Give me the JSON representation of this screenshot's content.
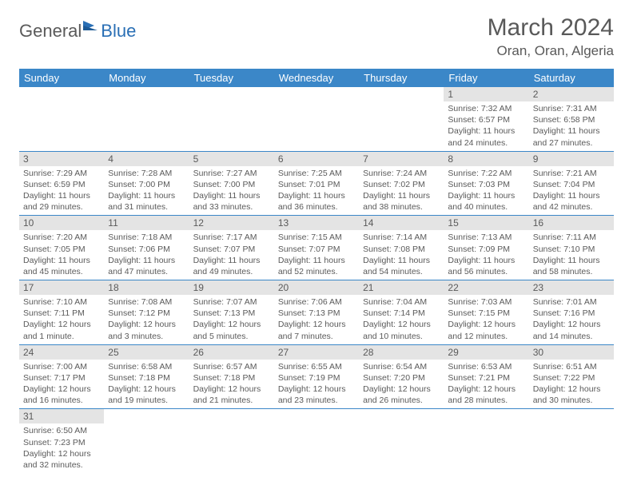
{
  "logo": {
    "part1": "General",
    "part2": "Blue"
  },
  "title": "March 2024",
  "location": "Oran, Oran, Algeria",
  "colors": {
    "header_bg": "#3b87c8",
    "header_text": "#ffffff",
    "daynum_bg": "#e4e4e4",
    "text": "#5a5a5a",
    "row_border": "#3b87c8",
    "logo_blue": "#2a6fb5"
  },
  "weekdays": [
    "Sunday",
    "Monday",
    "Tuesday",
    "Wednesday",
    "Thursday",
    "Friday",
    "Saturday"
  ],
  "grid": [
    [
      null,
      null,
      null,
      null,
      null,
      {
        "n": "1",
        "sr": "7:32 AM",
        "ss": "6:57 PM",
        "dl": "11 hours and 24 minutes."
      },
      {
        "n": "2",
        "sr": "7:31 AM",
        "ss": "6:58 PM",
        "dl": "11 hours and 27 minutes."
      }
    ],
    [
      {
        "n": "3",
        "sr": "7:29 AM",
        "ss": "6:59 PM",
        "dl": "11 hours and 29 minutes."
      },
      {
        "n": "4",
        "sr": "7:28 AM",
        "ss": "7:00 PM",
        "dl": "11 hours and 31 minutes."
      },
      {
        "n": "5",
        "sr": "7:27 AM",
        "ss": "7:00 PM",
        "dl": "11 hours and 33 minutes."
      },
      {
        "n": "6",
        "sr": "7:25 AM",
        "ss": "7:01 PM",
        "dl": "11 hours and 36 minutes."
      },
      {
        "n": "7",
        "sr": "7:24 AM",
        "ss": "7:02 PM",
        "dl": "11 hours and 38 minutes."
      },
      {
        "n": "8",
        "sr": "7:22 AM",
        "ss": "7:03 PM",
        "dl": "11 hours and 40 minutes."
      },
      {
        "n": "9",
        "sr": "7:21 AM",
        "ss": "7:04 PM",
        "dl": "11 hours and 42 minutes."
      }
    ],
    [
      {
        "n": "10",
        "sr": "7:20 AM",
        "ss": "7:05 PM",
        "dl": "11 hours and 45 minutes."
      },
      {
        "n": "11",
        "sr": "7:18 AM",
        "ss": "7:06 PM",
        "dl": "11 hours and 47 minutes."
      },
      {
        "n": "12",
        "sr": "7:17 AM",
        "ss": "7:07 PM",
        "dl": "11 hours and 49 minutes."
      },
      {
        "n": "13",
        "sr": "7:15 AM",
        "ss": "7:07 PM",
        "dl": "11 hours and 52 minutes."
      },
      {
        "n": "14",
        "sr": "7:14 AM",
        "ss": "7:08 PM",
        "dl": "11 hours and 54 minutes."
      },
      {
        "n": "15",
        "sr": "7:13 AM",
        "ss": "7:09 PM",
        "dl": "11 hours and 56 minutes."
      },
      {
        "n": "16",
        "sr": "7:11 AM",
        "ss": "7:10 PM",
        "dl": "11 hours and 58 minutes."
      }
    ],
    [
      {
        "n": "17",
        "sr": "7:10 AM",
        "ss": "7:11 PM",
        "dl": "12 hours and 1 minute."
      },
      {
        "n": "18",
        "sr": "7:08 AM",
        "ss": "7:12 PM",
        "dl": "12 hours and 3 minutes."
      },
      {
        "n": "19",
        "sr": "7:07 AM",
        "ss": "7:13 PM",
        "dl": "12 hours and 5 minutes."
      },
      {
        "n": "20",
        "sr": "7:06 AM",
        "ss": "7:13 PM",
        "dl": "12 hours and 7 minutes."
      },
      {
        "n": "21",
        "sr": "7:04 AM",
        "ss": "7:14 PM",
        "dl": "12 hours and 10 minutes."
      },
      {
        "n": "22",
        "sr": "7:03 AM",
        "ss": "7:15 PM",
        "dl": "12 hours and 12 minutes."
      },
      {
        "n": "23",
        "sr": "7:01 AM",
        "ss": "7:16 PM",
        "dl": "12 hours and 14 minutes."
      }
    ],
    [
      {
        "n": "24",
        "sr": "7:00 AM",
        "ss": "7:17 PM",
        "dl": "12 hours and 16 minutes."
      },
      {
        "n": "25",
        "sr": "6:58 AM",
        "ss": "7:18 PM",
        "dl": "12 hours and 19 minutes."
      },
      {
        "n": "26",
        "sr": "6:57 AM",
        "ss": "7:18 PM",
        "dl": "12 hours and 21 minutes."
      },
      {
        "n": "27",
        "sr": "6:55 AM",
        "ss": "7:19 PM",
        "dl": "12 hours and 23 minutes."
      },
      {
        "n": "28",
        "sr": "6:54 AM",
        "ss": "7:20 PM",
        "dl": "12 hours and 26 minutes."
      },
      {
        "n": "29",
        "sr": "6:53 AM",
        "ss": "7:21 PM",
        "dl": "12 hours and 28 minutes."
      },
      {
        "n": "30",
        "sr": "6:51 AM",
        "ss": "7:22 PM",
        "dl": "12 hours and 30 minutes."
      }
    ],
    [
      {
        "n": "31",
        "sr": "6:50 AM",
        "ss": "7:23 PM",
        "dl": "12 hours and 32 minutes."
      },
      null,
      null,
      null,
      null,
      null,
      null
    ]
  ],
  "labels": {
    "sunrise": "Sunrise:",
    "sunset": "Sunset:",
    "daylight": "Daylight:"
  }
}
